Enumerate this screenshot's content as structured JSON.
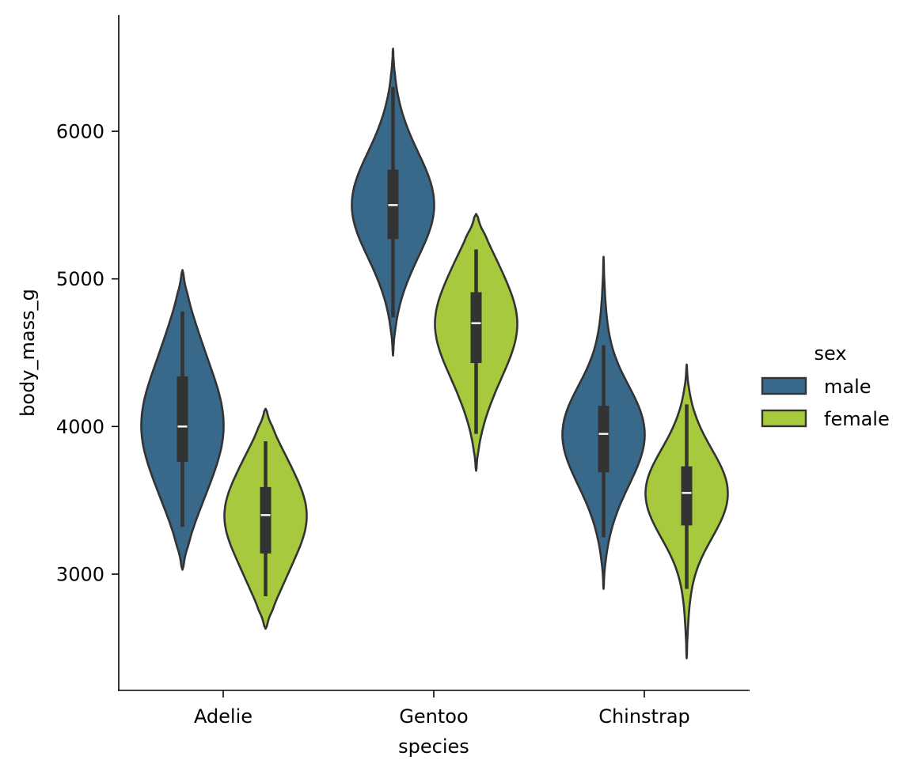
{
  "chart_data": {
    "type": "violin",
    "xlabel": "species",
    "ylabel": "body_mass_g",
    "categories": [
      "Adelie",
      "Gentoo",
      "Chinstrap"
    ],
    "ylim": [
      2200,
      6800
    ],
    "yticks": [
      3000,
      4000,
      5000,
      6000
    ],
    "yticks_labels": [
      "3000",
      "4000",
      "5000",
      "6000"
    ],
    "grid": false,
    "legend": {
      "title": "sex",
      "placement": "right"
    },
    "colors": {
      "male": "#38698a",
      "female": "#a6c93e",
      "outline": "#333333"
    },
    "series": [
      {
        "name": "male",
        "stats": [
          {
            "category": "Adelie",
            "q1": 3760,
            "median": 4000,
            "q3": 4340,
            "whisker_low": 3320,
            "whisker_high": 4780,
            "kde_min": 3030,
            "kde_max": 5060
          },
          {
            "category": "Gentoo",
            "q1": 5270,
            "median": 5500,
            "q3": 5740,
            "whisker_low": 4740,
            "whisker_high": 6300,
            "kde_min": 4480,
            "kde_max": 6560
          },
          {
            "category": "Chinstrap",
            "q1": 3690,
            "median": 3950,
            "q3": 4140,
            "whisker_low": 3250,
            "whisker_high": 4550,
            "kde_min": 2900,
            "kde_max": 5150
          }
        ]
      },
      {
        "name": "female",
        "stats": [
          {
            "category": "Adelie",
            "q1": 3140,
            "median": 3400,
            "q3": 3590,
            "whisker_low": 2850,
            "whisker_high": 3900,
            "kde_min": 2630,
            "kde_max": 4120
          },
          {
            "category": "Gentoo",
            "q1": 4430,
            "median": 4700,
            "q3": 4910,
            "whisker_low": 3950,
            "whisker_high": 5200,
            "kde_min": 3700,
            "kde_max": 5440
          },
          {
            "category": "Chinstrap",
            "q1": 3330,
            "median": 3550,
            "q3": 3730,
            "whisker_low": 2900,
            "whisker_high": 4150,
            "kde_min": 2430,
            "kde_max": 4420
          }
        ]
      }
    ]
  }
}
